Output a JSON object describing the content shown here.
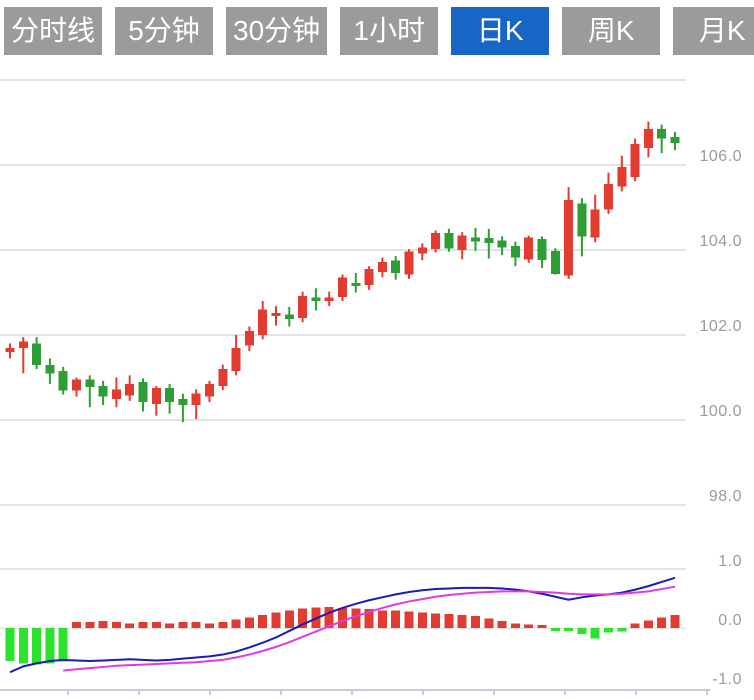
{
  "tabs": {
    "items": [
      {
        "label": "分时线",
        "active": false
      },
      {
        "label": "5分钟",
        "active": false
      },
      {
        "label": "30分钟",
        "active": false
      },
      {
        "label": "1小时",
        "active": false
      },
      {
        "label": "日K",
        "active": true
      },
      {
        "label": "周K",
        "active": false
      },
      {
        "label": "月K",
        "active": false
      }
    ]
  },
  "chart_data": {
    "type": "candlestick",
    "title": "",
    "legend_position": "none",
    "grid": true,
    "price_axis": {
      "tick_labels": [
        "106.0",
        "104.0",
        "102.0",
        "100.0",
        "98.0"
      ],
      "tick_values": [
        106,
        104,
        102,
        100,
        98
      ],
      "gridline_values": [
        108,
        106,
        104,
        102,
        100,
        98
      ],
      "range": [
        97.5,
        108.2
      ]
    },
    "indicator_axis": {
      "tick_labels": [
        "1.0",
        "0.0",
        "-1.0"
      ],
      "tick_values": [
        1,
        0,
        -1
      ],
      "range": [
        -1.1,
        1.05
      ]
    },
    "candles_ohlc": [
      [
        101.6,
        101.8,
        101.45,
        101.7
      ],
      [
        101.7,
        101.95,
        101.1,
        101.85
      ],
      [
        101.8,
        101.95,
        101.2,
        101.3
      ],
      [
        101.3,
        101.45,
        100.85,
        101.1
      ],
      [
        101.15,
        101.25,
        100.6,
        100.7
      ],
      [
        100.7,
        101.0,
        100.55,
        100.95
      ],
      [
        100.95,
        101.05,
        100.3,
        100.78
      ],
      [
        100.8,
        100.92,
        100.35,
        100.55
      ],
      [
        100.5,
        101.0,
        100.3,
        100.72
      ],
      [
        100.58,
        101.05,
        100.45,
        100.85
      ],
      [
        100.9,
        100.98,
        100.2,
        100.42
      ],
      [
        100.38,
        100.8,
        100.1,
        100.75
      ],
      [
        100.75,
        100.85,
        100.15,
        100.42
      ],
      [
        100.5,
        100.62,
        99.95,
        100.35
      ],
      [
        100.35,
        100.72,
        100.02,
        100.62
      ],
      [
        100.55,
        100.92,
        100.42,
        100.85
      ],
      [
        100.8,
        101.3,
        100.7,
        101.2
      ],
      [
        101.15,
        102.0,
        101.05,
        101.7
      ],
      [
        101.75,
        102.2,
        101.62,
        102.1
      ],
      [
        102.0,
        102.8,
        101.9,
        102.6
      ],
      [
        102.45,
        102.68,
        102.22,
        102.52
      ],
      [
        102.48,
        102.66,
        102.2,
        102.38
      ],
      [
        102.4,
        103.02,
        102.3,
        102.92
      ],
      [
        102.88,
        103.1,
        102.58,
        102.8
      ],
      [
        102.8,
        103.02,
        102.68,
        102.88
      ],
      [
        102.9,
        103.42,
        102.8,
        103.35
      ],
      [
        103.22,
        103.46,
        103.0,
        103.15
      ],
      [
        103.18,
        103.62,
        103.06,
        103.55
      ],
      [
        103.48,
        103.82,
        103.36,
        103.72
      ],
      [
        103.75,
        103.86,
        103.3,
        103.46
      ],
      [
        103.42,
        104.02,
        103.32,
        103.96
      ],
      [
        103.92,
        104.16,
        103.76,
        104.06
      ],
      [
        104.02,
        104.46,
        103.94,
        104.4
      ],
      [
        104.4,
        104.5,
        103.96,
        104.04
      ],
      [
        104.0,
        104.42,
        103.78,
        104.34
      ],
      [
        104.3,
        104.52,
        103.98,
        104.2
      ],
      [
        104.28,
        104.5,
        103.8,
        104.16
      ],
      [
        104.22,
        104.32,
        103.88,
        104.06
      ],
      [
        104.1,
        104.2,
        103.62,
        103.82
      ],
      [
        103.78,
        104.34,
        103.7,
        104.3
      ],
      [
        104.26,
        104.32,
        103.58,
        103.76
      ],
      [
        103.98,
        104.04,
        103.42,
        103.44
      ],
      [
        103.4,
        105.48,
        103.32,
        105.18
      ],
      [
        105.1,
        105.22,
        103.85,
        104.32
      ],
      [
        104.3,
        105.3,
        104.18,
        104.95
      ],
      [
        104.95,
        105.82,
        104.85,
        105.55
      ],
      [
        105.5,
        106.22,
        105.38,
        105.95
      ],
      [
        105.72,
        106.62,
        105.62,
        106.5
      ],
      [
        106.4,
        107.02,
        106.18,
        106.85
      ],
      [
        106.85,
        106.95,
        106.28,
        106.62
      ],
      [
        106.66,
        106.78,
        106.35,
        106.52
      ]
    ],
    "macd_histogram": [
      -0.56,
      -0.6,
      -0.62,
      -0.6,
      -0.57,
      0.1,
      0.1,
      0.12,
      0.1,
      0.08,
      0.1,
      0.1,
      0.08,
      0.1,
      0.1,
      0.08,
      0.1,
      0.14,
      0.18,
      0.22,
      0.26,
      0.3,
      0.33,
      0.35,
      0.36,
      0.34,
      0.33,
      0.32,
      0.3,
      0.3,
      0.28,
      0.26,
      0.25,
      0.24,
      0.22,
      0.2,
      0.16,
      0.12,
      0.08,
      0.06,
      0.05,
      -0.04,
      -0.05,
      -0.1,
      -0.18,
      -0.08,
      -0.06,
      0.08,
      0.13,
      0.18,
      0.22
    ],
    "dif_line": [
      -0.75,
      -0.65,
      -0.6,
      -0.56,
      -0.54,
      -0.55,
      -0.56,
      -0.55,
      -0.54,
      -0.53,
      -0.54,
      -0.55,
      -0.54,
      -0.52,
      -0.5,
      -0.48,
      -0.45,
      -0.4,
      -0.33,
      -0.25,
      -0.16,
      -0.05,
      0.06,
      0.16,
      0.26,
      0.34,
      0.41,
      0.47,
      0.52,
      0.57,
      0.61,
      0.64,
      0.66,
      0.67,
      0.68,
      0.68,
      0.68,
      0.67,
      0.65,
      0.62,
      0.58,
      0.53,
      0.48,
      0.52,
      0.55,
      0.57,
      0.6,
      0.65,
      0.71,
      0.78,
      0.85
    ],
    "dea_line": {
      "start_index": 4,
      "values": [
        -0.72,
        -0.7,
        -0.68,
        -0.66,
        -0.64,
        -0.63,
        -0.62,
        -0.61,
        -0.6,
        -0.59,
        -0.58,
        -0.56,
        -0.54,
        -0.5,
        -0.45,
        -0.39,
        -0.32,
        -0.24,
        -0.15,
        -0.06,
        0.03,
        0.12,
        0.2,
        0.27,
        0.34,
        0.4,
        0.45,
        0.49,
        0.53,
        0.56,
        0.58,
        0.6,
        0.61,
        0.62,
        0.62,
        0.62,
        0.61,
        0.6,
        0.58,
        0.57,
        0.57,
        0.57,
        0.58,
        0.6,
        0.62,
        0.66,
        0.7
      ]
    },
    "colors": {
      "up": "#e23b30",
      "down": "#2d9e36",
      "macd_up": "#e23b30",
      "macd_down": "#2be32b",
      "dif": "#1c1cb0",
      "dea": "#e23ae2",
      "grid": "#e4e4e4",
      "axis": "#c5cbd9",
      "label": "#9b9b9b",
      "tab_active": "#1766c5",
      "tab_inactive": "#9b9b9b"
    }
  }
}
